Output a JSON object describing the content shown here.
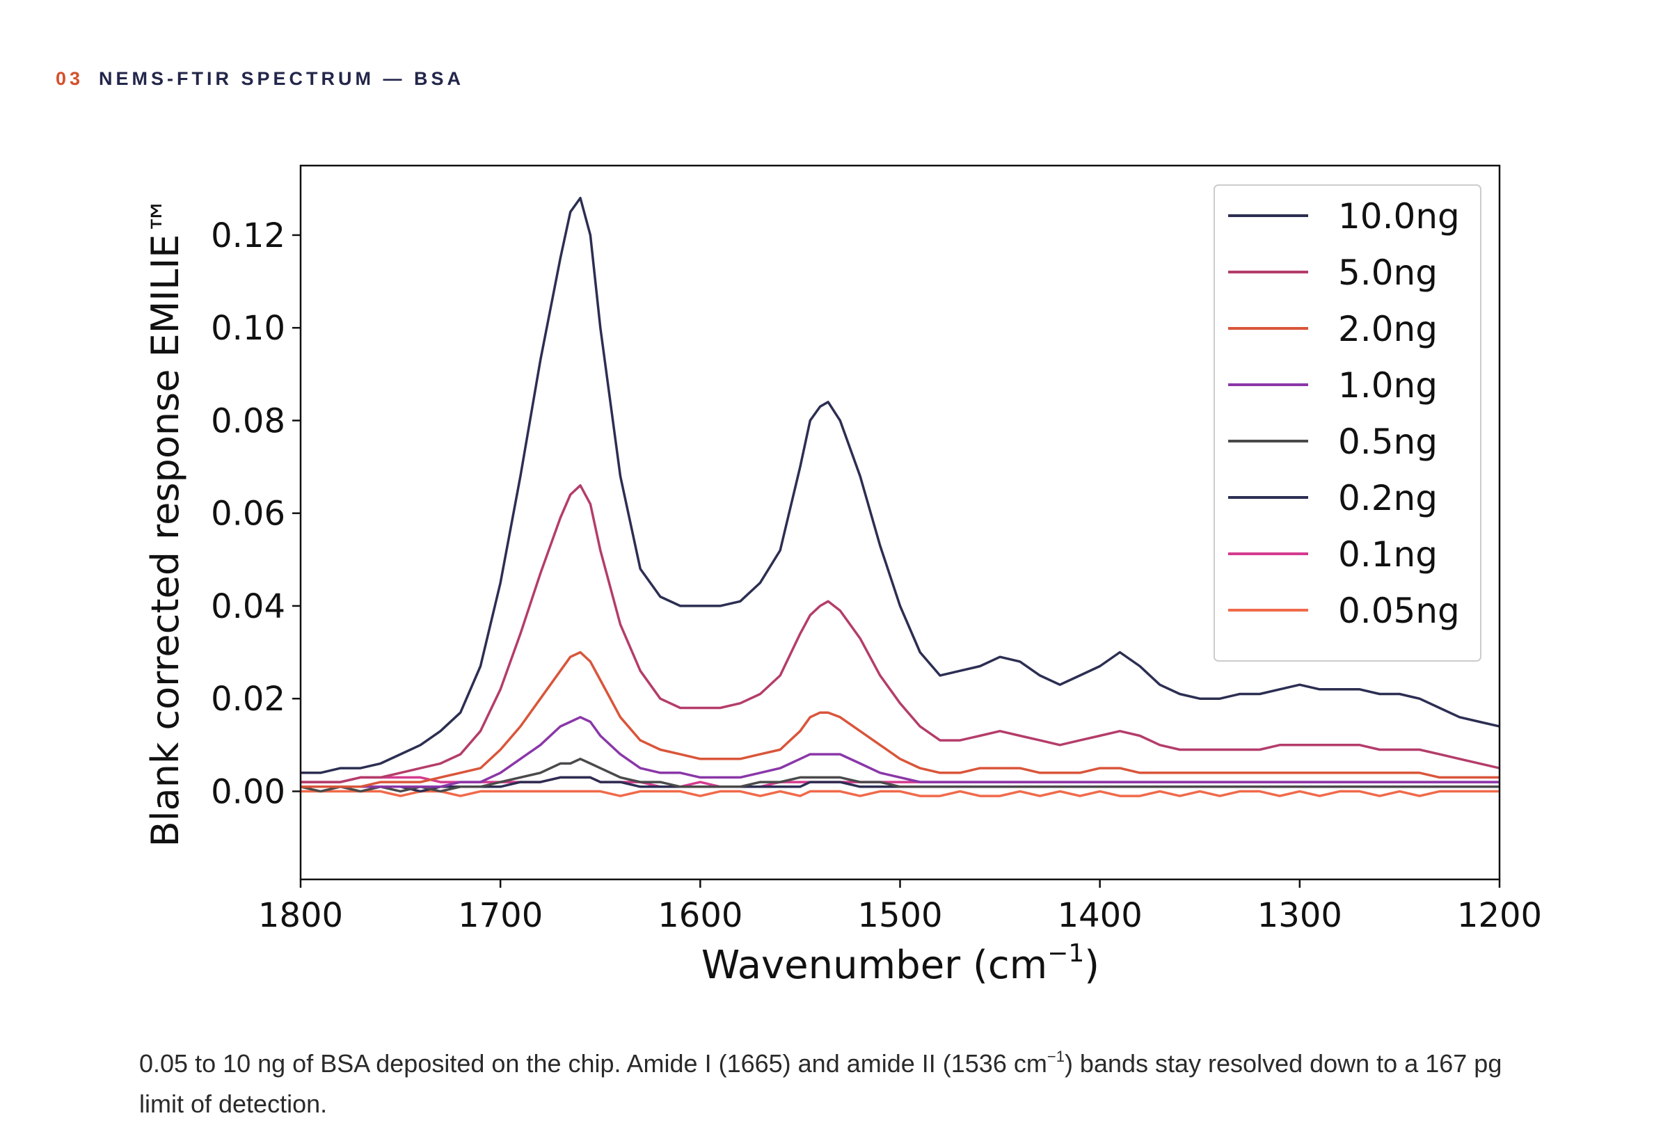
{
  "header": {
    "number": "03",
    "title": "NEMS-FTIR SPECTRUM — BSA"
  },
  "caption": {
    "before_sup": "0.05 to 10 ng of BSA deposited on the chip. Amide I (1665) and amide II (1536 cm",
    "sup": "−1",
    "after_sup": ") bands stay resolved down to a 167 pg limit of detection."
  },
  "chart_data": {
    "type": "line",
    "xlabel": "Wavenumber (cm",
    "xlabel_sup": "−1",
    "xlabel_close": ")",
    "ylabel": "Blank corrected response EMILIE™",
    "xlim": [
      1800,
      1200
    ],
    "x_reversed": true,
    "ylim": [
      -0.019,
      0.135
    ],
    "xticks": [
      1800,
      1700,
      1600,
      1500,
      1400,
      1300,
      1200
    ],
    "yticks": [
      "0.00",
      "0.02",
      "0.04",
      "0.06",
      "0.08",
      "0.10",
      "0.12"
    ],
    "legend_position": "top-right",
    "grid": false,
    "x": [
      1800,
      1790,
      1780,
      1770,
      1760,
      1750,
      1740,
      1730,
      1720,
      1710,
      1700,
      1690,
      1680,
      1670,
      1665,
      1660,
      1655,
      1650,
      1640,
      1630,
      1620,
      1610,
      1600,
      1590,
      1580,
      1570,
      1560,
      1550,
      1545,
      1540,
      1536,
      1530,
      1520,
      1510,
      1500,
      1490,
      1480,
      1470,
      1460,
      1450,
      1440,
      1430,
      1420,
      1410,
      1400,
      1390,
      1380,
      1370,
      1360,
      1350,
      1340,
      1330,
      1320,
      1310,
      1300,
      1290,
      1280,
      1270,
      1260,
      1250,
      1240,
      1230,
      1220,
      1210,
      1200
    ],
    "series": [
      {
        "name": "10.0ng",
        "color": "#2c2e52",
        "values": [
          0.004,
          0.004,
          0.005,
          0.005,
          0.006,
          0.008,
          0.01,
          0.013,
          0.017,
          0.027,
          0.045,
          0.068,
          0.093,
          0.115,
          0.125,
          0.128,
          0.12,
          0.1,
          0.068,
          0.048,
          0.042,
          0.04,
          0.04,
          0.04,
          0.041,
          0.045,
          0.052,
          0.07,
          0.08,
          0.083,
          0.084,
          0.08,
          0.068,
          0.053,
          0.04,
          0.03,
          0.025,
          0.026,
          0.027,
          0.029,
          0.028,
          0.025,
          0.023,
          0.025,
          0.027,
          0.03,
          0.027,
          0.023,
          0.021,
          0.02,
          0.02,
          0.021,
          0.021,
          0.022,
          0.023,
          0.022,
          0.022,
          0.022,
          0.021,
          0.021,
          0.02,
          0.018,
          0.016,
          0.015,
          0.014
        ]
      },
      {
        "name": "5.0ng",
        "color": "#b43d6a",
        "values": [
          0.002,
          0.002,
          0.002,
          0.003,
          0.003,
          0.004,
          0.005,
          0.006,
          0.008,
          0.013,
          0.022,
          0.034,
          0.047,
          0.059,
          0.064,
          0.066,
          0.062,
          0.052,
          0.036,
          0.026,
          0.02,
          0.018,
          0.018,
          0.018,
          0.019,
          0.021,
          0.025,
          0.034,
          0.038,
          0.04,
          0.041,
          0.039,
          0.033,
          0.025,
          0.019,
          0.014,
          0.011,
          0.011,
          0.012,
          0.013,
          0.012,
          0.011,
          0.01,
          0.011,
          0.012,
          0.013,
          0.012,
          0.01,
          0.009,
          0.009,
          0.009,
          0.009,
          0.009,
          0.01,
          0.01,
          0.01,
          0.01,
          0.01,
          0.009,
          0.009,
          0.009,
          0.008,
          0.007,
          0.006,
          0.005
        ]
      },
      {
        "name": "2.0ng",
        "color": "#d9553a",
        "values": [
          0.001,
          0.001,
          0.001,
          0.001,
          0.002,
          0.002,
          0.002,
          0.003,
          0.004,
          0.005,
          0.009,
          0.014,
          0.02,
          0.026,
          0.029,
          0.03,
          0.028,
          0.024,
          0.016,
          0.011,
          0.009,
          0.008,
          0.007,
          0.007,
          0.007,
          0.008,
          0.009,
          0.013,
          0.016,
          0.017,
          0.017,
          0.016,
          0.013,
          0.01,
          0.007,
          0.005,
          0.004,
          0.004,
          0.005,
          0.005,
          0.005,
          0.004,
          0.004,
          0.004,
          0.005,
          0.005,
          0.004,
          0.004,
          0.004,
          0.004,
          0.004,
          0.004,
          0.004,
          0.004,
          0.004,
          0.004,
          0.004,
          0.004,
          0.004,
          0.004,
          0.004,
          0.003,
          0.003,
          0.003,
          0.003
        ]
      },
      {
        "name": "1.0ng",
        "color": "#8a37a8",
        "values": [
          0.001,
          0.001,
          0.001,
          0.001,
          0.001,
          0.001,
          0.001,
          0.001,
          0.002,
          0.002,
          0.004,
          0.007,
          0.01,
          0.014,
          0.015,
          0.016,
          0.015,
          0.012,
          0.008,
          0.005,
          0.004,
          0.004,
          0.003,
          0.003,
          0.003,
          0.004,
          0.005,
          0.007,
          0.008,
          0.008,
          0.008,
          0.008,
          0.006,
          0.004,
          0.003,
          0.002,
          0.002,
          0.002,
          0.002,
          0.002,
          0.002,
          0.002,
          0.002,
          0.002,
          0.002,
          0.002,
          0.002,
          0.002,
          0.002,
          0.002,
          0.002,
          0.002,
          0.002,
          0.002,
          0.002,
          0.002,
          0.002,
          0.002,
          0.002,
          0.002,
          0.002,
          0.002,
          0.002,
          0.002,
          0.002
        ]
      },
      {
        "name": "0.5ng",
        "color": "#4a4a4a",
        "values": [
          0.001,
          0.0,
          0.001,
          0.0,
          0.001,
          0.0,
          0.001,
          0.0,
          0.001,
          0.001,
          0.002,
          0.003,
          0.004,
          0.006,
          0.006,
          0.007,
          0.006,
          0.005,
          0.003,
          0.002,
          0.002,
          0.001,
          0.001,
          0.001,
          0.001,
          0.002,
          0.002,
          0.003,
          0.003,
          0.003,
          0.003,
          0.003,
          0.002,
          0.002,
          0.001,
          0.001,
          0.001,
          0.001,
          0.001,
          0.001,
          0.001,
          0.001,
          0.001,
          0.001,
          0.001,
          0.001,
          0.001,
          0.001,
          0.001,
          0.001,
          0.001,
          0.001,
          0.001,
          0.001,
          0.001,
          0.001,
          0.001,
          0.001,
          0.001,
          0.001,
          0.001,
          0.001,
          0.001,
          0.001,
          0.001
        ]
      },
      {
        "name": "0.2ng",
        "color": "#2c2e52",
        "values": [
          0.001,
          0.001,
          0.001,
          0.001,
          0.001,
          0.001,
          0.0,
          0.001,
          0.001,
          0.001,
          0.001,
          0.002,
          0.002,
          0.003,
          0.003,
          0.003,
          0.003,
          0.002,
          0.002,
          0.001,
          0.001,
          0.001,
          0.001,
          0.001,
          0.001,
          0.001,
          0.001,
          0.001,
          0.002,
          0.002,
          0.002,
          0.002,
          0.001,
          0.001,
          0.001,
          0.001,
          0.001,
          0.001,
          0.001,
          0.001,
          0.001,
          0.001,
          0.001,
          0.001,
          0.001,
          0.001,
          0.001,
          0.001,
          0.001,
          0.001,
          0.001,
          0.001,
          0.001,
          0.001,
          0.001,
          0.001,
          0.001,
          0.001,
          0.001,
          0.001,
          0.001,
          0.001,
          0.001,
          0.001,
          0.001
        ]
      },
      {
        "name": "0.1ng",
        "color": "#d43b8e",
        "values": [
          0.002,
          0.002,
          0.002,
          0.003,
          0.003,
          0.003,
          0.003,
          0.002,
          0.002,
          0.002,
          0.002,
          0.002,
          0.002,
          0.003,
          0.003,
          0.003,
          0.003,
          0.002,
          0.002,
          0.002,
          0.001,
          0.001,
          0.002,
          0.001,
          0.001,
          0.001,
          0.002,
          0.002,
          0.002,
          0.002,
          0.002,
          0.002,
          0.002,
          0.002,
          0.002,
          0.002,
          0.002,
          0.002,
          0.002,
          0.002,
          0.002,
          0.002,
          0.002,
          0.002,
          0.002,
          0.002,
          0.002,
          0.002,
          0.002,
          0.002,
          0.002,
          0.002,
          0.002,
          0.002,
          0.002,
          0.002,
          0.002,
          0.002,
          0.002,
          0.002,
          0.002,
          0.002,
          0.002,
          0.002,
          0.002
        ]
      },
      {
        "name": "0.05ng",
        "color": "#f06a4a",
        "values": [
          0.0,
          0.0,
          0.0,
          0.0,
          0.0,
          -0.001,
          0.0,
          0.0,
          -0.001,
          0.0,
          0.0,
          0.0,
          0.0,
          0.0,
          0.0,
          0.0,
          0.0,
          0.0,
          -0.001,
          0.0,
          0.0,
          0.0,
          -0.001,
          0.0,
          0.0,
          -0.001,
          0.0,
          -0.001,
          0.0,
          0.0,
          0.0,
          0.0,
          -0.001,
          0.0,
          0.0,
          -0.001,
          -0.001,
          0.0,
          -0.001,
          -0.001,
          0.0,
          -0.001,
          0.0,
          -0.001,
          0.0,
          -0.001,
          -0.001,
          0.0,
          -0.001,
          0.0,
          -0.001,
          0.0,
          0.0,
          -0.001,
          0.0,
          -0.001,
          0.0,
          0.0,
          -0.001,
          0.0,
          -0.001,
          0.0,
          0.0,
          0.0,
          0.0
        ]
      }
    ]
  }
}
